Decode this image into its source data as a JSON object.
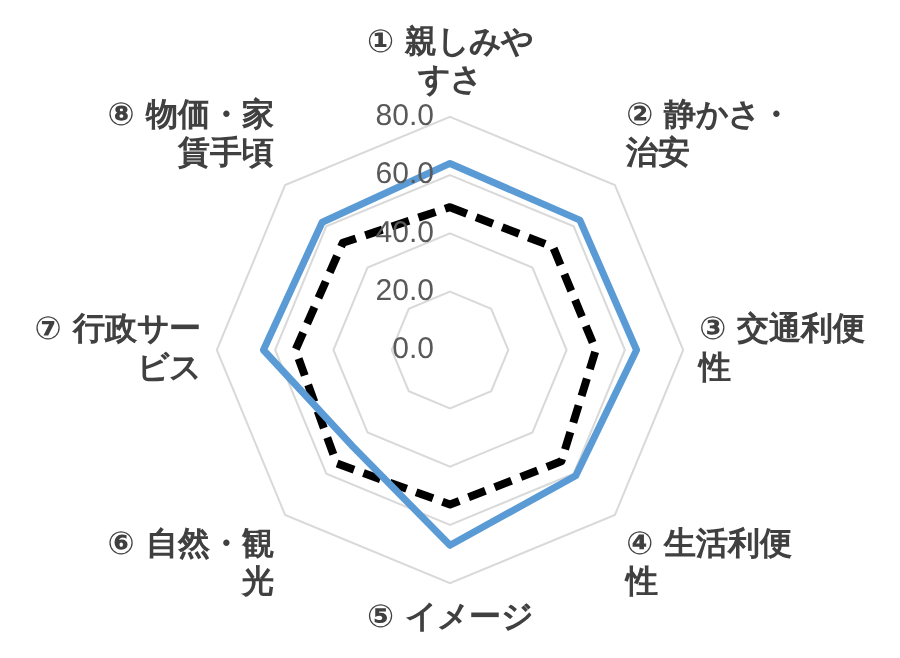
{
  "chart_data": {
    "type": "radar",
    "categories": [
      "① 親しみやすさ",
      "② 静かさ・治安",
      "③ 交通利便性",
      "④ 生活利便性",
      "⑤ イメージ",
      "⑥ 自然・観光",
      "⑦ 行政サービス",
      "⑧ 物価・家賃手頃"
    ],
    "series": [
      {
        "color": "#5b9bd5",
        "values": [
          64,
          63,
          64,
          61,
          67,
          47,
          64,
          62
        ],
        "line_style": "solid"
      },
      {
        "color": "#000000",
        "values": [
          49,
          50,
          50,
          54,
          53,
          55,
          53,
          52
        ],
        "line_style": "dashed"
      }
    ],
    "ylim": [
      0,
      80
    ],
    "yticks": [
      {
        "value": 0,
        "label": "0.0"
      },
      {
        "value": 20,
        "label": "20.0"
      },
      {
        "value": 40,
        "label": "40.0"
      },
      {
        "value": 60,
        "label": "60.0"
      },
      {
        "value": 80,
        "label": "80.0"
      }
    ],
    "grid": true,
    "legend": false,
    "marker": "none"
  }
}
